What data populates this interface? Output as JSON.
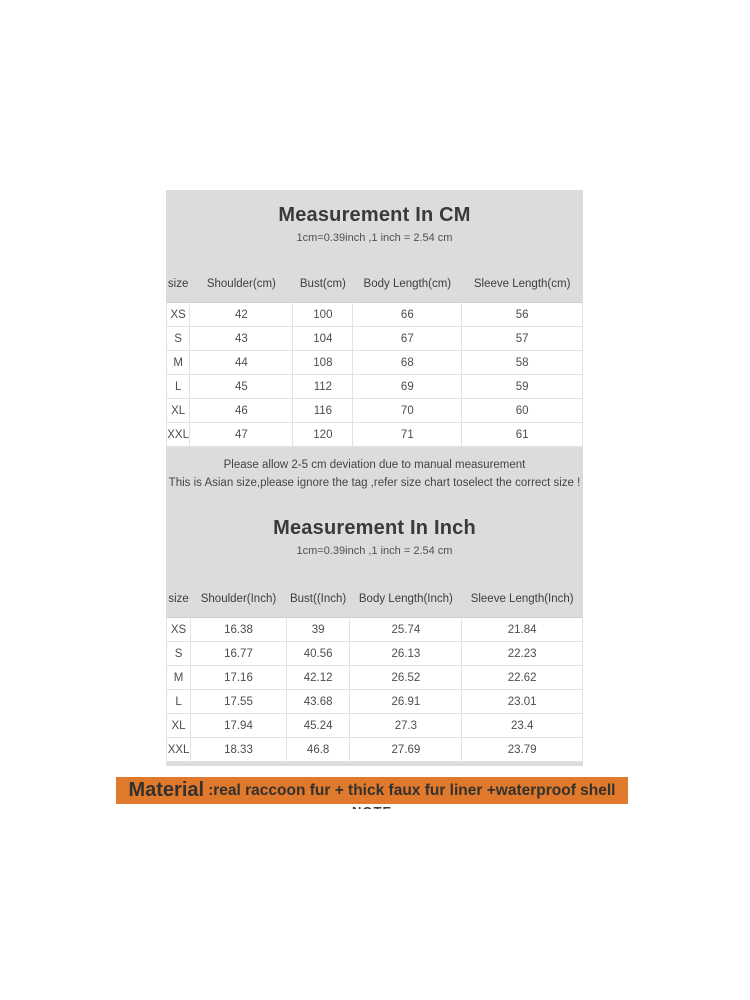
{
  "colors": {
    "panel_bg": "#dcdcdc",
    "row_bg": "#ffffff",
    "row_border": "#e2e2e2",
    "text": "#4d4d4d",
    "highlight_orange": "#e0792b"
  },
  "cm_section": {
    "title": "Measurement In CM",
    "subtitle": "1cm=0.39inch ,1 inch = 2.54 cm",
    "columns": [
      "size",
      "Shoulder(cm)",
      "Bust(cm)",
      "Body Length(cm)",
      "Sleeve Length(cm)"
    ],
    "rows": [
      [
        "XS",
        "42",
        "100",
        "66",
        "56"
      ],
      [
        "S",
        "43",
        "104",
        "67",
        "57"
      ],
      [
        "M",
        "44",
        "108",
        "68",
        "58"
      ],
      [
        "L",
        "45",
        "112",
        "69",
        "59"
      ],
      [
        "XL",
        "46",
        "116",
        "70",
        "60"
      ],
      [
        "XXL",
        "47",
        "120",
        "71",
        "61"
      ]
    ],
    "notes": [
      "Please allow 2-5 cm deviation due to manual measurement",
      "This is Asian size,please ignore the tag ,refer size chart toselect the correct size !"
    ]
  },
  "inch_section": {
    "title": "Measurement In Inch",
    "subtitle": "1cm=0.39inch ,1 inch = 2.54 cm",
    "columns": [
      "size",
      "Shoulder(Inch)",
      "Bust((Inch)",
      "Body Length(Inch)",
      "Sleeve Length(Inch)"
    ],
    "rows": [
      [
        "XS",
        "16.38",
        "39",
        "25.74",
        "21.84"
      ],
      [
        "S",
        "16.77",
        "40.56",
        "26.13",
        "22.23"
      ],
      [
        "M",
        "17.16",
        "42.12",
        "26.52",
        "22.62"
      ],
      [
        "L",
        "17.55",
        "43.68",
        "26.91",
        "23.01"
      ],
      [
        "XL",
        "17.94",
        "45.24",
        "27.3",
        "23.4"
      ],
      [
        "XXL",
        "18.33",
        "46.8",
        "27.69",
        "23.79"
      ]
    ]
  },
  "material": {
    "label": "Material",
    "text": ":real raccoon fur + thick faux fur liner +waterproof shell",
    "highlight_color": "#e0792b"
  },
  "footer_clipped_text": "NOTE"
}
